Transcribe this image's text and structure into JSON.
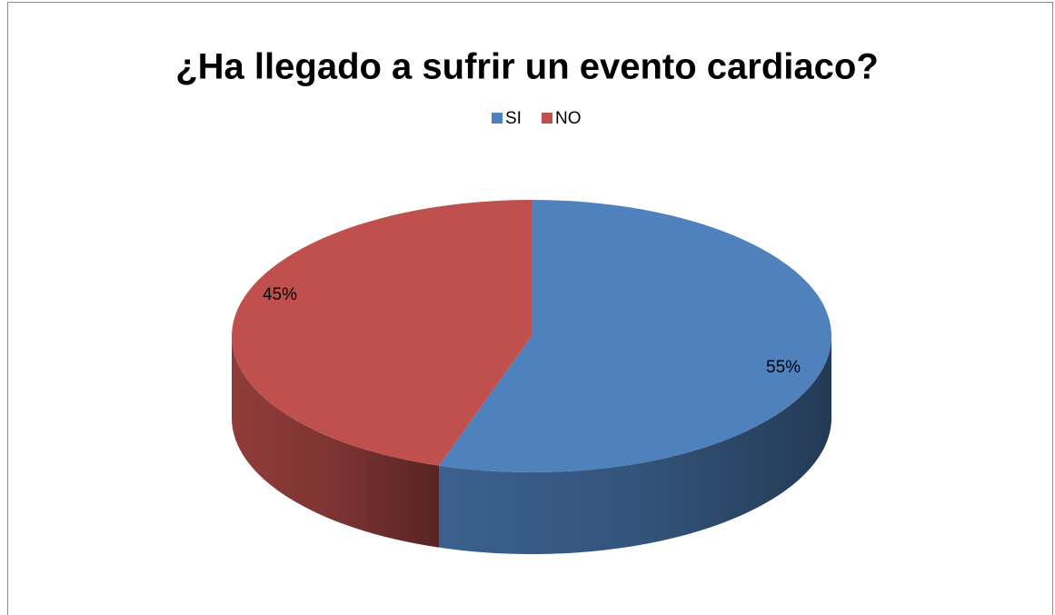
{
  "chart_data": {
    "type": "pie",
    "title": "¿Ha llegado a sufrir un evento cardiaco?",
    "categories": [
      "SI",
      "NO"
    ],
    "values": [
      55,
      45
    ],
    "value_labels": [
      "55%",
      "45%"
    ],
    "colors": [
      "#4f81bd",
      "#c0504d"
    ],
    "legend": "top"
  }
}
